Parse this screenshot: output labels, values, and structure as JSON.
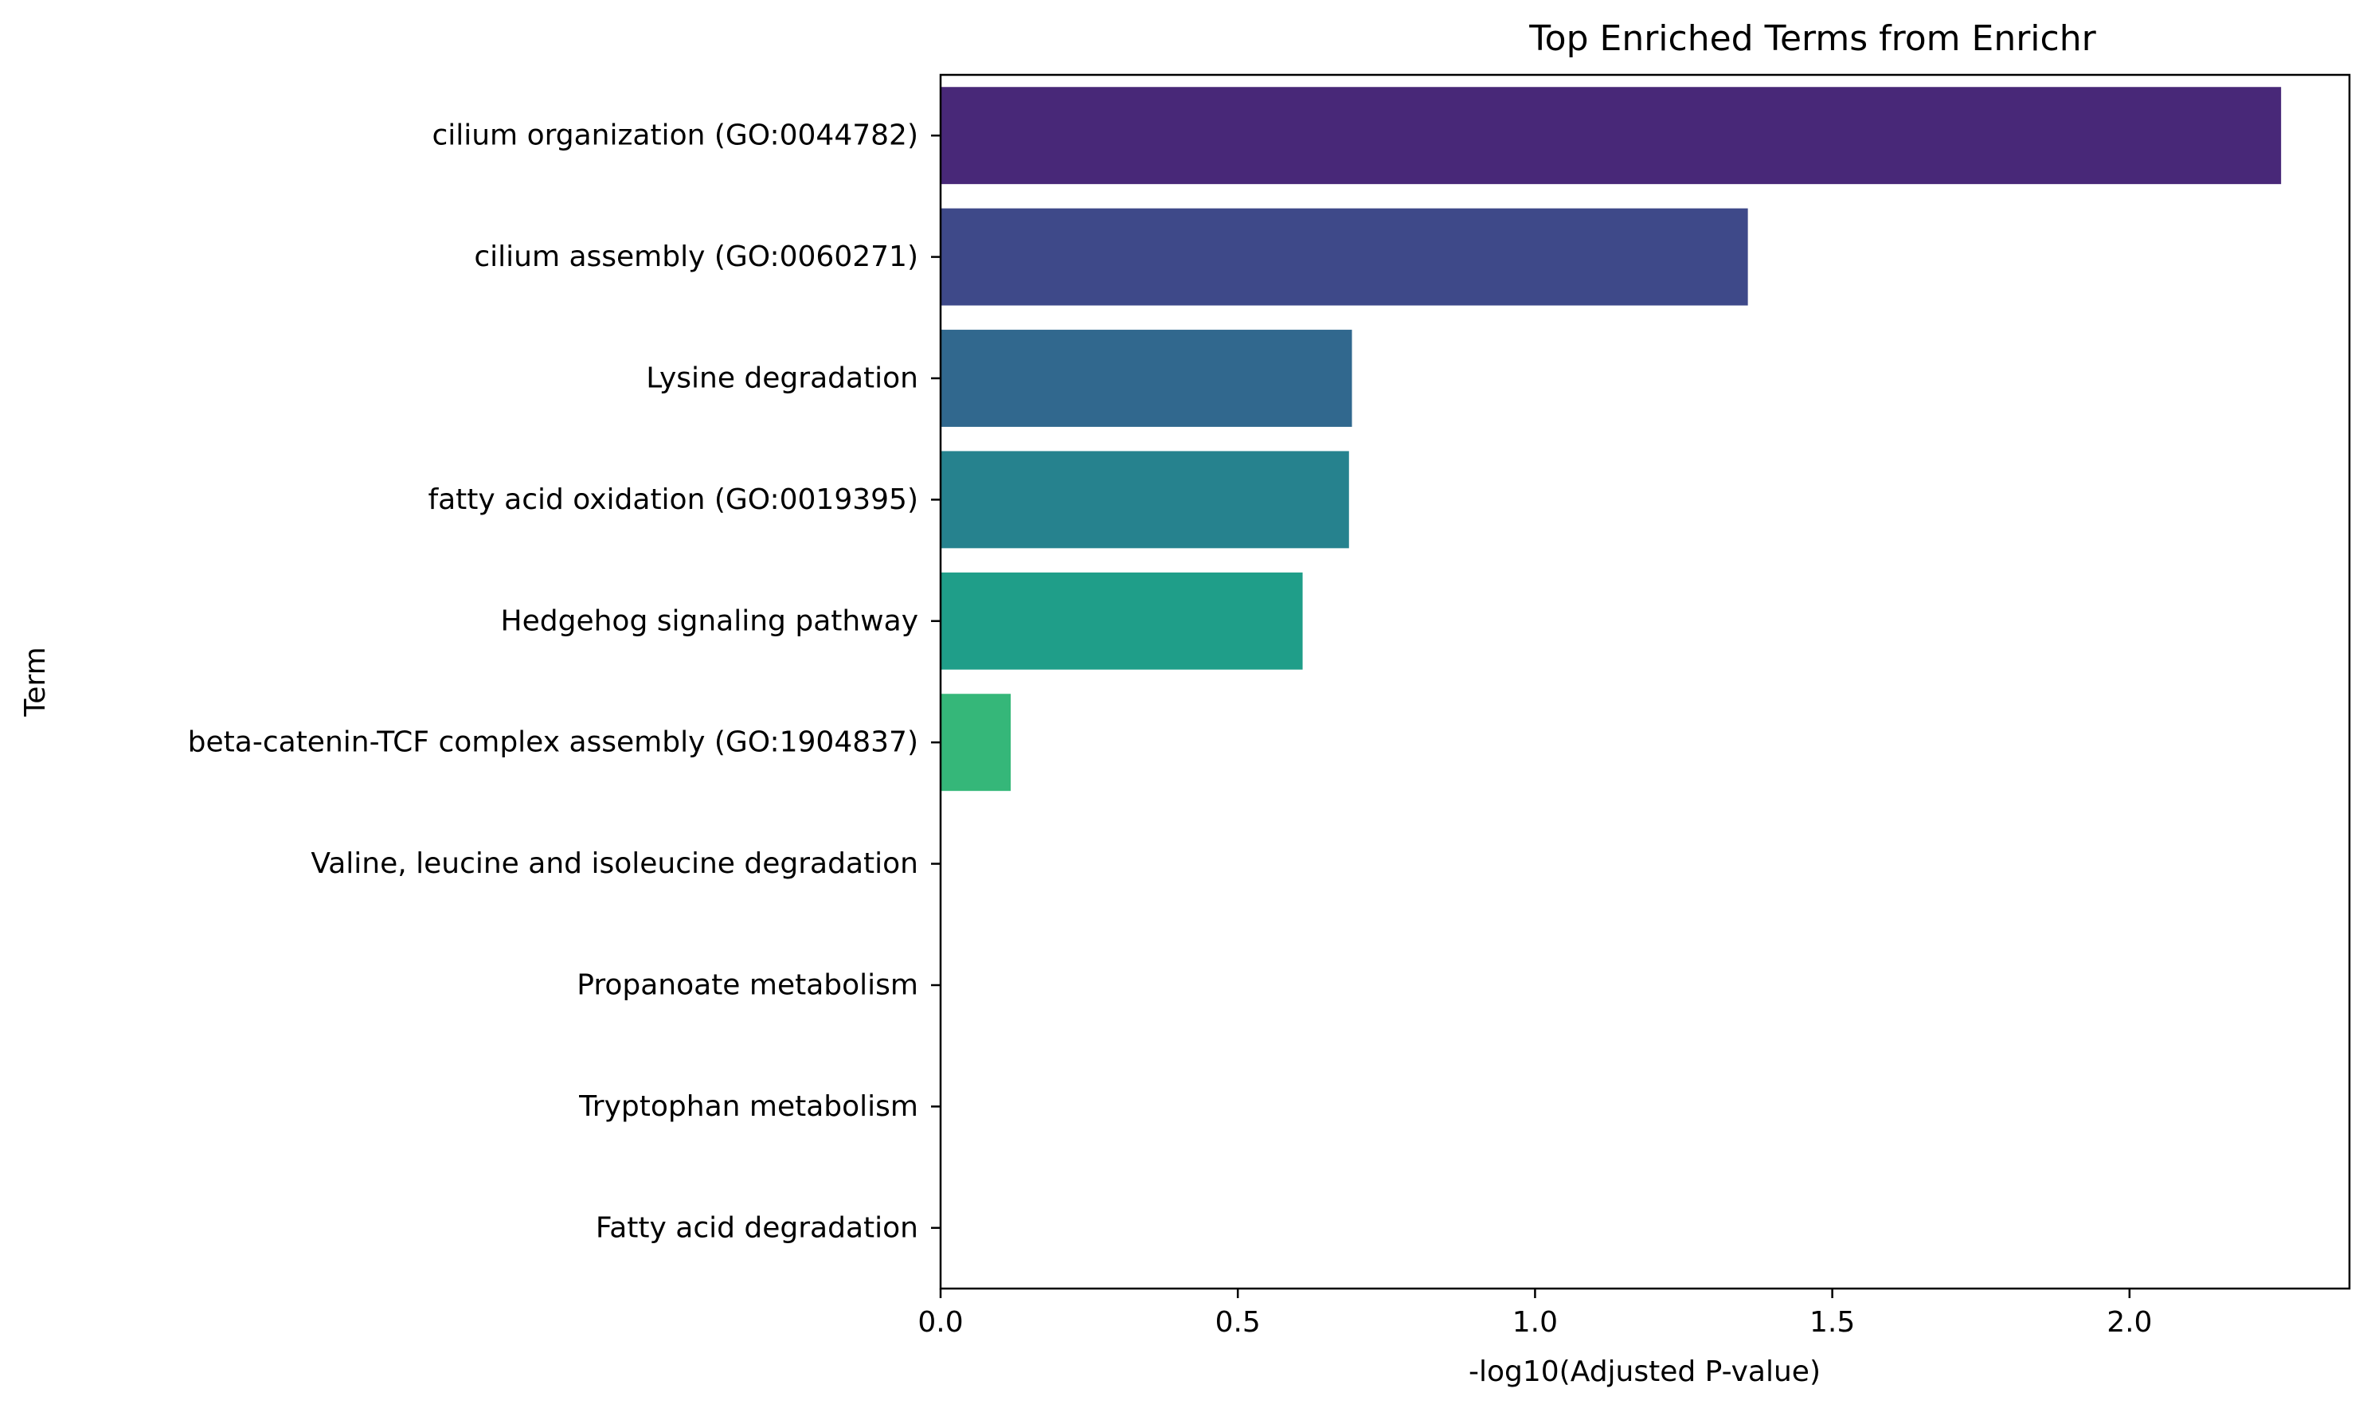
{
  "chart_data": {
    "type": "bar",
    "orientation": "horizontal",
    "title": "Top Enriched Terms from Enrichr",
    "xlabel": "-log10(Adjusted P-value)",
    "ylabel": "Term",
    "xlim": [
      0,
      2.37
    ],
    "xticks": [
      "0.0",
      "0.5",
      "1.0",
      "1.5",
      "2.0"
    ],
    "xtick_values": [
      0.0,
      0.5,
      1.0,
      1.5,
      2.0
    ],
    "grid": false,
    "legend": "none",
    "colormap": "viridis",
    "categories": [
      "cilium organization (GO:0044782)",
      "cilium assembly (GO:0060271)",
      "Lysine degradation",
      "fatty acid oxidation (GO:0019395)",
      "Hedgehog signaling pathway",
      "beta-catenin-TCF complex assembly (GO:1904837)",
      "Valine, leucine and isoleucine degradation",
      "Propanoate metabolism",
      "Tryptophan metabolism",
      "Fatty acid degradation"
    ],
    "values": [
      2.255,
      1.358,
      0.692,
      0.687,
      0.609,
      0.118,
      0.0,
      0.0,
      0.0,
      0.0
    ],
    "colors": [
      "#482878",
      "#3e4989",
      "#31688e",
      "#26828e",
      "#1f9e89",
      "#35b779",
      "#6ece58",
      "#b5de2b",
      "#fde725",
      "#fde725"
    ]
  }
}
